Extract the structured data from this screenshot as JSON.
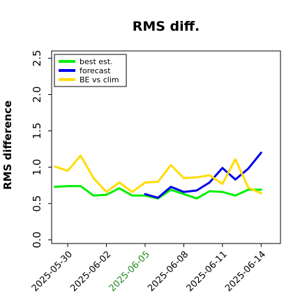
{
  "chart_data": {
    "type": "line",
    "title": "RMS diff.",
    "ylabel": "RMS difference",
    "xlabel": "",
    "x_ticks": [
      "2025-05-30",
      "2025-06-02",
      "2025-06-05",
      "2025-06-08",
      "2025-06-11",
      "2025-06-14"
    ],
    "highlight_tick": "2025-06-05",
    "highlight_color": "#228b22",
    "y_ticks": [
      "0.0",
      "0.5",
      "1.0",
      "1.5",
      "2.0",
      "2.5"
    ],
    "ylim": [
      -0.05,
      2.6
    ],
    "xlim": [
      "2025-05-28T18:00",
      "2025-06-15T12:00"
    ],
    "grid": false,
    "legend_position": "top-left",
    "series": [
      {
        "name": "best est.",
        "color": "#00ee00",
        "points": [
          [
            "2025-05-29",
            0.73
          ],
          [
            "2025-05-30",
            0.74
          ],
          [
            "2025-05-31",
            0.74
          ],
          [
            "2025-06-01",
            0.61
          ],
          [
            "2025-06-02",
            0.62
          ],
          [
            "2025-06-03",
            0.71
          ],
          [
            "2025-06-04",
            0.61
          ],
          [
            "2025-06-05",
            0.61
          ],
          [
            "2025-06-06",
            0.57
          ],
          [
            "2025-06-07",
            0.69
          ],
          [
            "2025-06-08",
            0.63
          ],
          [
            "2025-06-09",
            0.57
          ],
          [
            "2025-06-10",
            0.67
          ],
          [
            "2025-06-11",
            0.66
          ],
          [
            "2025-06-12",
            0.61
          ],
          [
            "2025-06-13",
            0.69
          ],
          [
            "2025-06-14",
            0.69
          ]
        ]
      },
      {
        "name": "forecast",
        "color": "#0000ee",
        "points": [
          [
            "2025-06-05",
            0.63
          ],
          [
            "2025-06-06",
            0.58
          ],
          [
            "2025-06-07",
            0.73
          ],
          [
            "2025-06-08",
            0.66
          ],
          [
            "2025-06-09",
            0.68
          ],
          [
            "2025-06-10",
            0.79
          ],
          [
            "2025-06-11",
            0.99
          ],
          [
            "2025-06-12",
            0.83
          ],
          [
            "2025-06-13",
            0.98
          ],
          [
            "2025-06-14",
            1.2
          ]
        ]
      },
      {
        "name": "BE vs clim",
        "color": "#ffdd00",
        "points": [
          [
            "2025-05-29",
            1.01
          ],
          [
            "2025-05-30",
            0.95
          ],
          [
            "2025-05-31",
            1.16
          ],
          [
            "2025-06-01",
            0.85
          ],
          [
            "2025-06-02",
            0.66
          ],
          [
            "2025-06-03",
            0.79
          ],
          [
            "2025-06-04",
            0.66
          ],
          [
            "2025-06-05",
            0.79
          ],
          [
            "2025-06-06",
            0.8
          ],
          [
            "2025-06-07",
            1.03
          ],
          [
            "2025-06-08",
            0.85
          ],
          [
            "2025-06-09",
            0.86
          ],
          [
            "2025-06-10",
            0.89
          ],
          [
            "2025-06-11",
            0.77
          ],
          [
            "2025-06-12",
            1.11
          ],
          [
            "2025-06-13",
            0.72
          ],
          [
            "2025-06-14",
            0.64
          ]
        ]
      }
    ]
  }
}
